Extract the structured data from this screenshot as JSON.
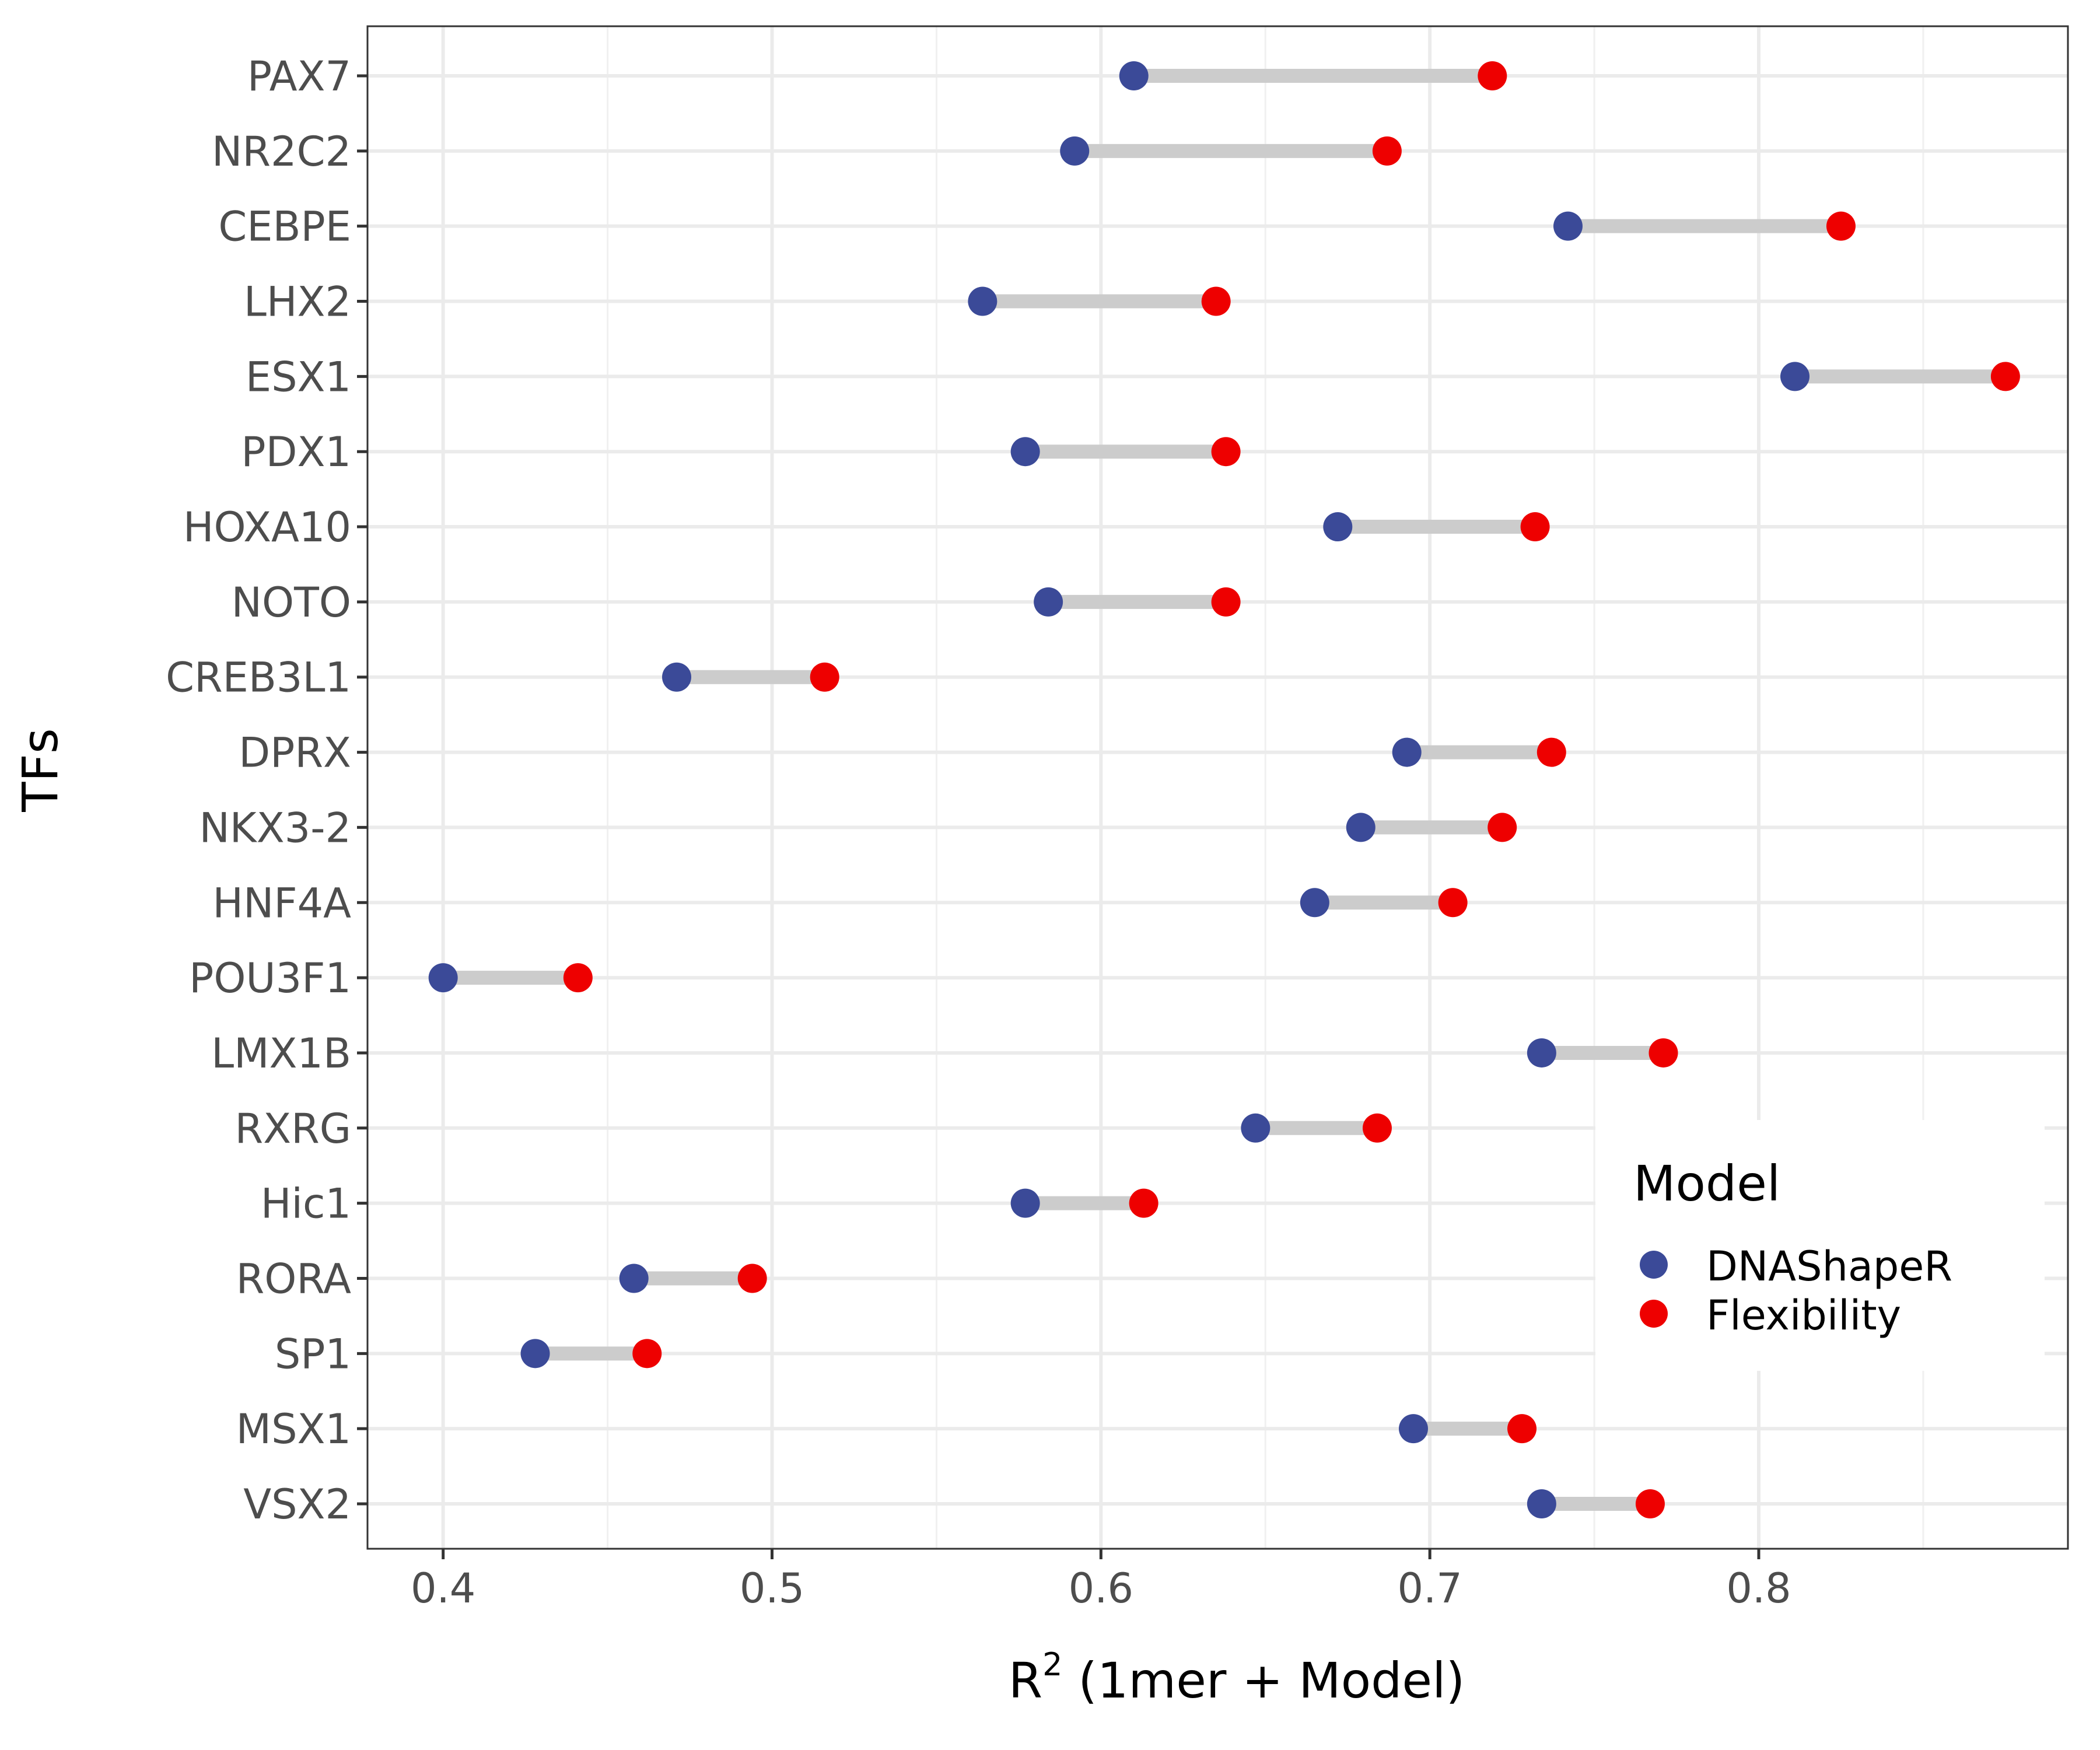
{
  "chart_data": {
    "type": "dumbbell",
    "xlabel": "R",
    "xlabel_superscript": "2",
    "xlabel_rest": " (1mer + Model)",
    "ylabel": "TFs",
    "xlim": [
      0.377,
      0.894
    ],
    "xticks": [
      0.4,
      0.5,
      0.6,
      0.7,
      0.8
    ],
    "xtick_labels": [
      "0.4",
      "0.5",
      "0.6",
      "0.7",
      "0.8"
    ],
    "grid": true,
    "legend": {
      "title": "Model",
      "placement": "bottom-right inside",
      "entries": [
        "DNAShapeR",
        "Flexibility"
      ]
    },
    "colors": {
      "DNAShapeR": "#3b4a98",
      "Flexibility": "#ee0000",
      "segment": "#cccccc"
    },
    "categories": [
      "PAX7",
      "NR2C2",
      "CEBPE",
      "LHX2",
      "ESX1",
      "PDX1",
      "HOXA10",
      "NOTO",
      "CREB3L1",
      "DPRX",
      "NKX3-2",
      "HNF4A",
      "POU3F1",
      "LMX1B",
      "RXRG",
      "Hic1",
      "RORA",
      "SP1",
      "MSX1",
      "VSX2"
    ],
    "series": [
      {
        "name": "DNAShapeR",
        "values": [
          0.61,
          0.592,
          0.742,
          0.564,
          0.811,
          0.577,
          0.672,
          0.584,
          0.471,
          0.693,
          0.679,
          0.665,
          0.4,
          0.734,
          0.647,
          0.577,
          0.458,
          0.428,
          0.695,
          0.734
        ]
      },
      {
        "name": "Flexibility",
        "values": [
          0.719,
          0.687,
          0.825,
          0.635,
          0.875,
          0.638,
          0.732,
          0.638,
          0.516,
          0.737,
          0.722,
          0.707,
          0.441,
          0.771,
          0.684,
          0.613,
          0.494,
          0.462,
          0.728,
          0.767
        ]
      }
    ]
  }
}
